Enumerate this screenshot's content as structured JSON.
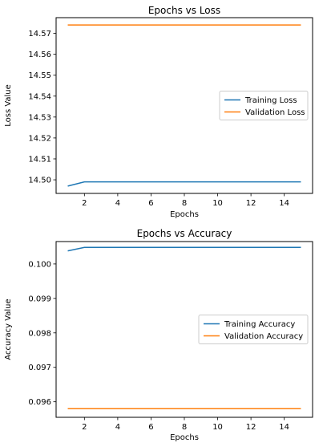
{
  "chart_data": [
    {
      "type": "line",
      "title": "Epochs vs Loss",
      "xlabel": "Epochs",
      "ylabel": "Loss Value",
      "xlim": [
        0.3,
        15.7
      ],
      "ylim": [
        14.4935,
        14.5775
      ],
      "xticks": [
        2,
        4,
        6,
        8,
        10,
        12,
        14
      ],
      "yticks": [
        14.5,
        14.51,
        14.52,
        14.53,
        14.54,
        14.55,
        14.56,
        14.57
      ],
      "ytick_decimals": 2,
      "x": [
        1,
        2,
        3,
        4,
        5,
        6,
        7,
        8,
        9,
        10,
        11,
        12,
        13,
        14,
        15
      ],
      "series": [
        {
          "name": "Training Loss",
          "color": "#1f77b4",
          "values": [
            14.497,
            14.499,
            14.499,
            14.499,
            14.499,
            14.499,
            14.499,
            14.499,
            14.499,
            14.499,
            14.499,
            14.499,
            14.499,
            14.499,
            14.499
          ]
        },
        {
          "name": "Validation Loss",
          "color": "#ff7f0e",
          "values": [
            14.574,
            14.574,
            14.574,
            14.574,
            14.574,
            14.574,
            14.574,
            14.574,
            14.574,
            14.574,
            14.574,
            14.574,
            14.574,
            14.574,
            14.574
          ]
        }
      ],
      "legend": "center-right",
      "grid": false
    },
    {
      "type": "line",
      "title": "Epochs vs Accuracy",
      "xlabel": "Epochs",
      "ylabel": "Accuracy Value",
      "xlim": [
        0.3,
        15.7
      ],
      "ylim": [
        0.09555,
        0.10065
      ],
      "xticks": [
        2,
        4,
        6,
        8,
        10,
        12,
        14
      ],
      "yticks": [
        0.096,
        0.097,
        0.098,
        0.099,
        0.1
      ],
      "ytick_decimals": 3,
      "x": [
        1,
        2,
        3,
        4,
        5,
        6,
        7,
        8,
        9,
        10,
        11,
        12,
        13,
        14,
        15
      ],
      "series": [
        {
          "name": "Training Accuracy",
          "color": "#1f77b4",
          "values": [
            0.10038,
            0.10048,
            0.10048,
            0.10048,
            0.10048,
            0.10048,
            0.10048,
            0.10048,
            0.10048,
            0.10048,
            0.10048,
            0.10048,
            0.10048,
            0.10048,
            0.10048
          ]
        },
        {
          "name": "Validation Accuracy",
          "color": "#ff7f0e",
          "values": [
            0.0958,
            0.0958,
            0.0958,
            0.0958,
            0.0958,
            0.0958,
            0.0958,
            0.0958,
            0.0958,
            0.0958,
            0.0958,
            0.0958,
            0.0958,
            0.0958,
            0.0958
          ]
        }
      ],
      "legend": "center-right",
      "grid": false
    }
  ]
}
